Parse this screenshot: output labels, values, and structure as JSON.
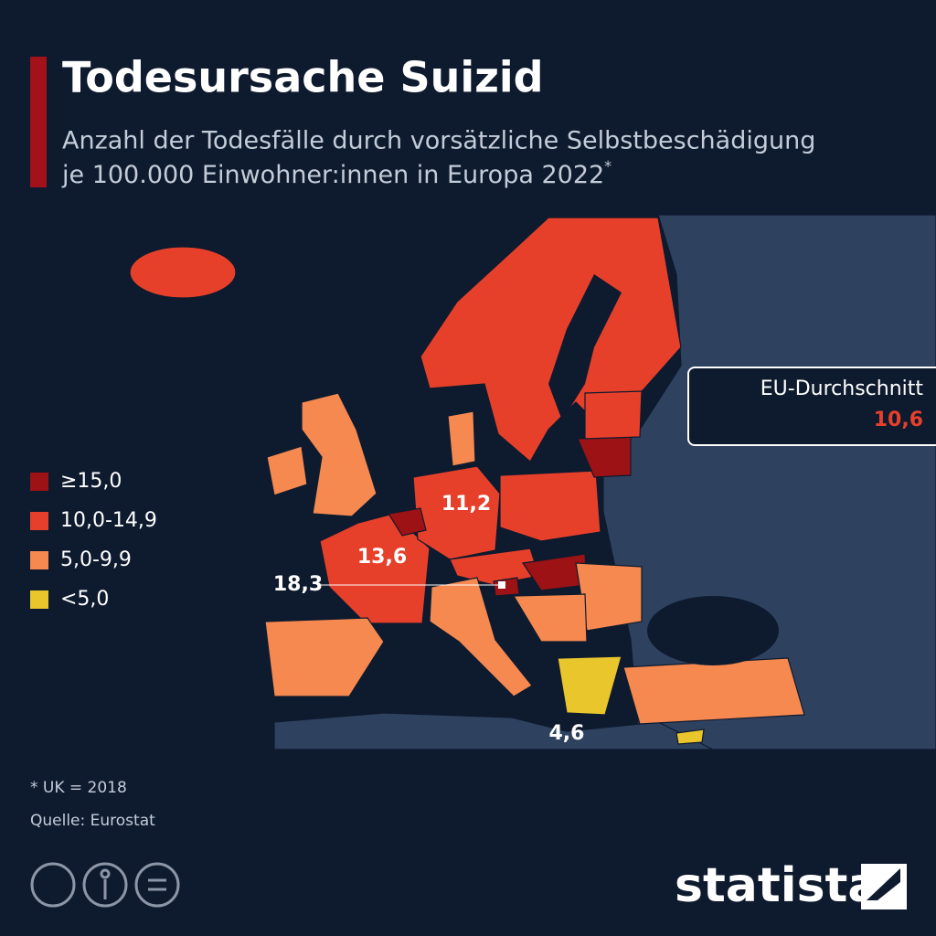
{
  "header": {
    "title": "Todesursache Suizid",
    "subtitle": [
      "Anzahl der Todesfälle durch vorsätzliche Selbstbeschädigung",
      "je 100.000 Einwohner:innen in Europa 2022"
    ],
    "subtitle_mark": "*"
  },
  "legend": [
    {
      "label": "≥15,0",
      "color": "#9c1215"
    },
    {
      "label": "10,0-14,9",
      "color": "#e6402b"
    },
    {
      "label": "5,0-9,9",
      "color": "#f58950"
    },
    {
      "label": "<5,0",
      "color": "#e9c62c"
    }
  ],
  "map_labels": [
    {
      "label": "11,2"
    },
    {
      "label": "13,6"
    },
    {
      "label": "18,3"
    },
    {
      "label": "4,6"
    }
  ],
  "eu_average": {
    "label": "EU-Durchschnitt",
    "value": "10,6"
  },
  "footer": {
    "note": "* UK = 2018",
    "source": "Quelle: Eurostat",
    "brand": "statista"
  }
}
